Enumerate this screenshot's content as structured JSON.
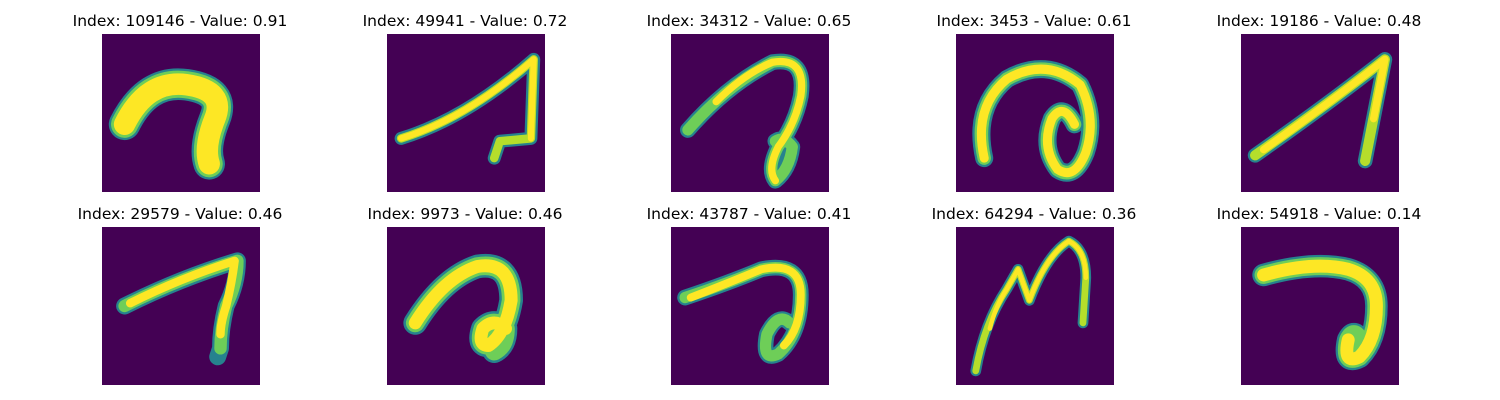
{
  "background_color": "#440154",
  "stroke_colors": [
    "#fde725",
    "#b5de2b",
    "#6ece58",
    "#35b779",
    "#1f9e89",
    "#26828e",
    "#31688e",
    "#3e4989",
    "#482878"
  ],
  "panels": [
    {
      "title": "Index: 109146 - Value: 0.91",
      "index": 109146,
      "value": 0.91
    },
    {
      "title": "Index: 49941 - Value: 0.72",
      "index": 49941,
      "value": 0.72
    },
    {
      "title": "Index: 34312 - Value: 0.65",
      "index": 34312,
      "value": 0.65
    },
    {
      "title": "Index: 3453 - Value: 0.61",
      "index": 3453,
      "value": 0.61
    },
    {
      "title": "Index: 19186 - Value: 0.48",
      "index": 19186,
      "value": 0.48
    },
    {
      "title": "Index: 29579 - Value: 0.46",
      "index": 29579,
      "value": 0.46
    },
    {
      "title": "Index: 9973 - Value: 0.46",
      "index": 9973,
      "value": 0.46
    },
    {
      "title": "Index: 43787 - Value: 0.41",
      "index": 43787,
      "value": 0.41
    },
    {
      "title": "Index: 64294 - Value: 0.36",
      "index": 64294,
      "value": 0.36
    },
    {
      "title": "Index: 54918 - Value: 0.14",
      "index": 54918,
      "value": 0.14
    }
  ]
}
